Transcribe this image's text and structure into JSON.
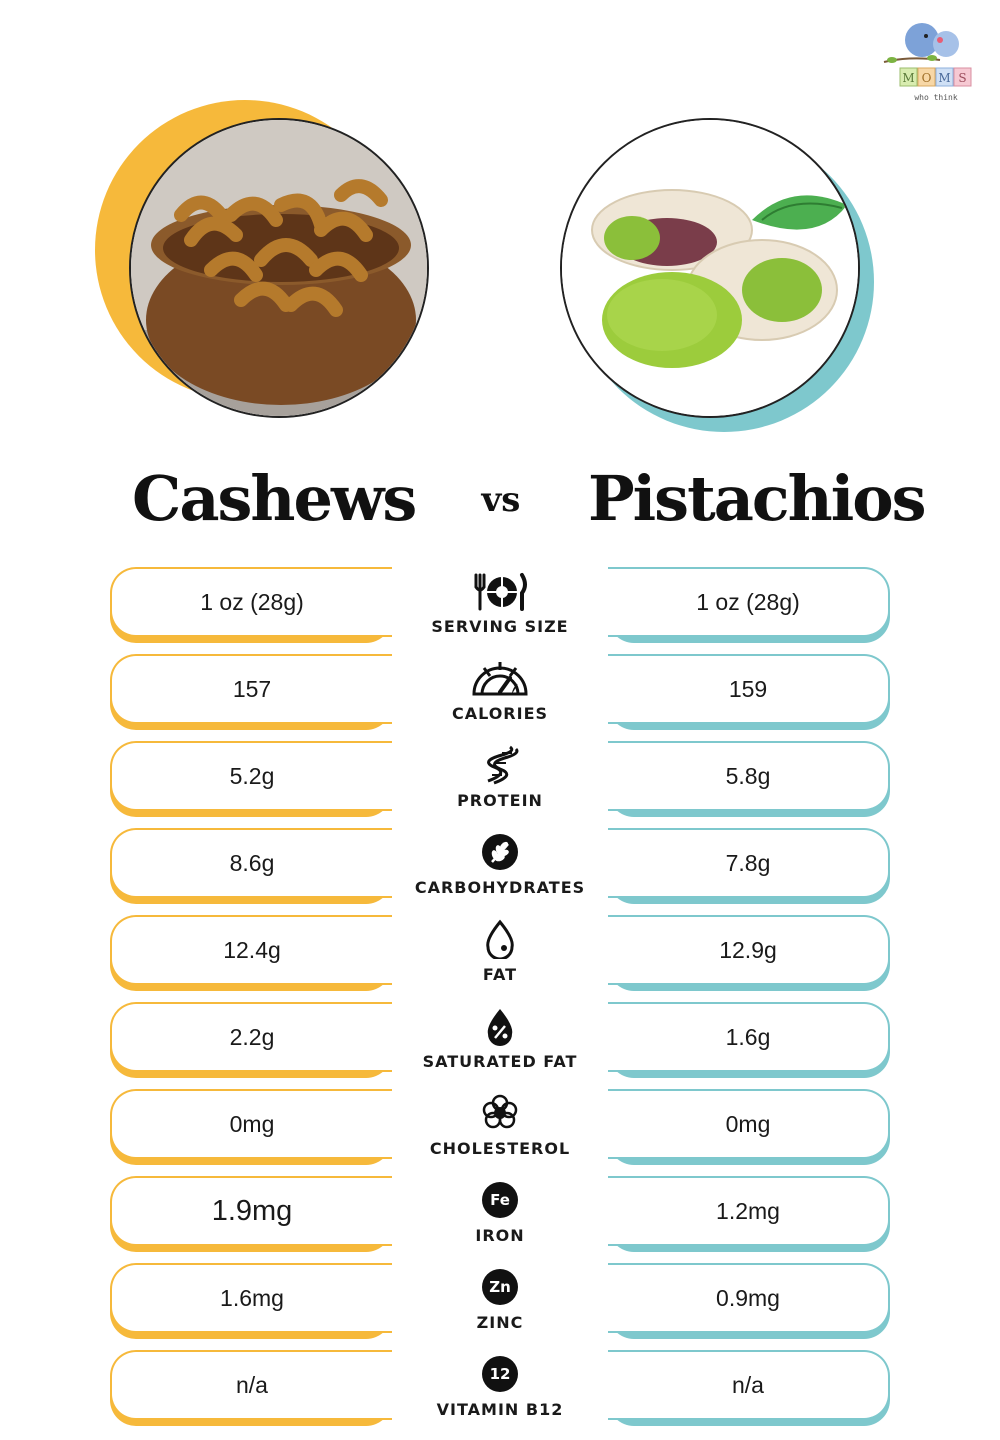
{
  "logo": {
    "brand": "MOMS",
    "tagline": "who think"
  },
  "colors": {
    "cashew_accent": "#f6b93b",
    "pistachio_accent": "#7ec8cd",
    "text": "#1a1a1a"
  },
  "header": {
    "left_title": "Cashews",
    "vs": "vs",
    "right_title": "Pistachios"
  },
  "rows": [
    {
      "label": "SERVING SIZE",
      "icon": "fork-plate-knife-icon",
      "left": "1 oz (28g)",
      "right": "1 oz (28g)"
    },
    {
      "label": "CALORIES",
      "icon": "gauge-icon",
      "left": "157",
      "right": "159"
    },
    {
      "label": "PROTEIN",
      "icon": "dna-helix-icon",
      "left": "5.2g",
      "right": "5.8g"
    },
    {
      "label": "CARBOHYDRATES",
      "icon": "wheat-icon",
      "left": "8.6g",
      "right": "7.8g"
    },
    {
      "label": "FAT",
      "icon": "drop-icon",
      "left": "12.4g",
      "right": "12.9g"
    },
    {
      "label": "SATURATED FAT",
      "icon": "percent-drop-icon",
      "left": "2.2g",
      "right": "1.6g"
    },
    {
      "label": "CHOLESTEROL",
      "icon": "cholesterol-icon",
      "left": "0mg",
      "right": "0mg"
    },
    {
      "label": "IRON",
      "icon": "fe-badge-icon",
      "badge": "Fe",
      "left": "1.9mg",
      "right": "1.2mg"
    },
    {
      "label": "ZINC",
      "icon": "zn-badge-icon",
      "badge": "Zn",
      "left": "1.6mg",
      "right": "0.9mg"
    },
    {
      "label": "VITAMIN B12",
      "icon": "b12-badge-icon",
      "badge": "12",
      "left": "n/a",
      "right": "n/a"
    }
  ]
}
